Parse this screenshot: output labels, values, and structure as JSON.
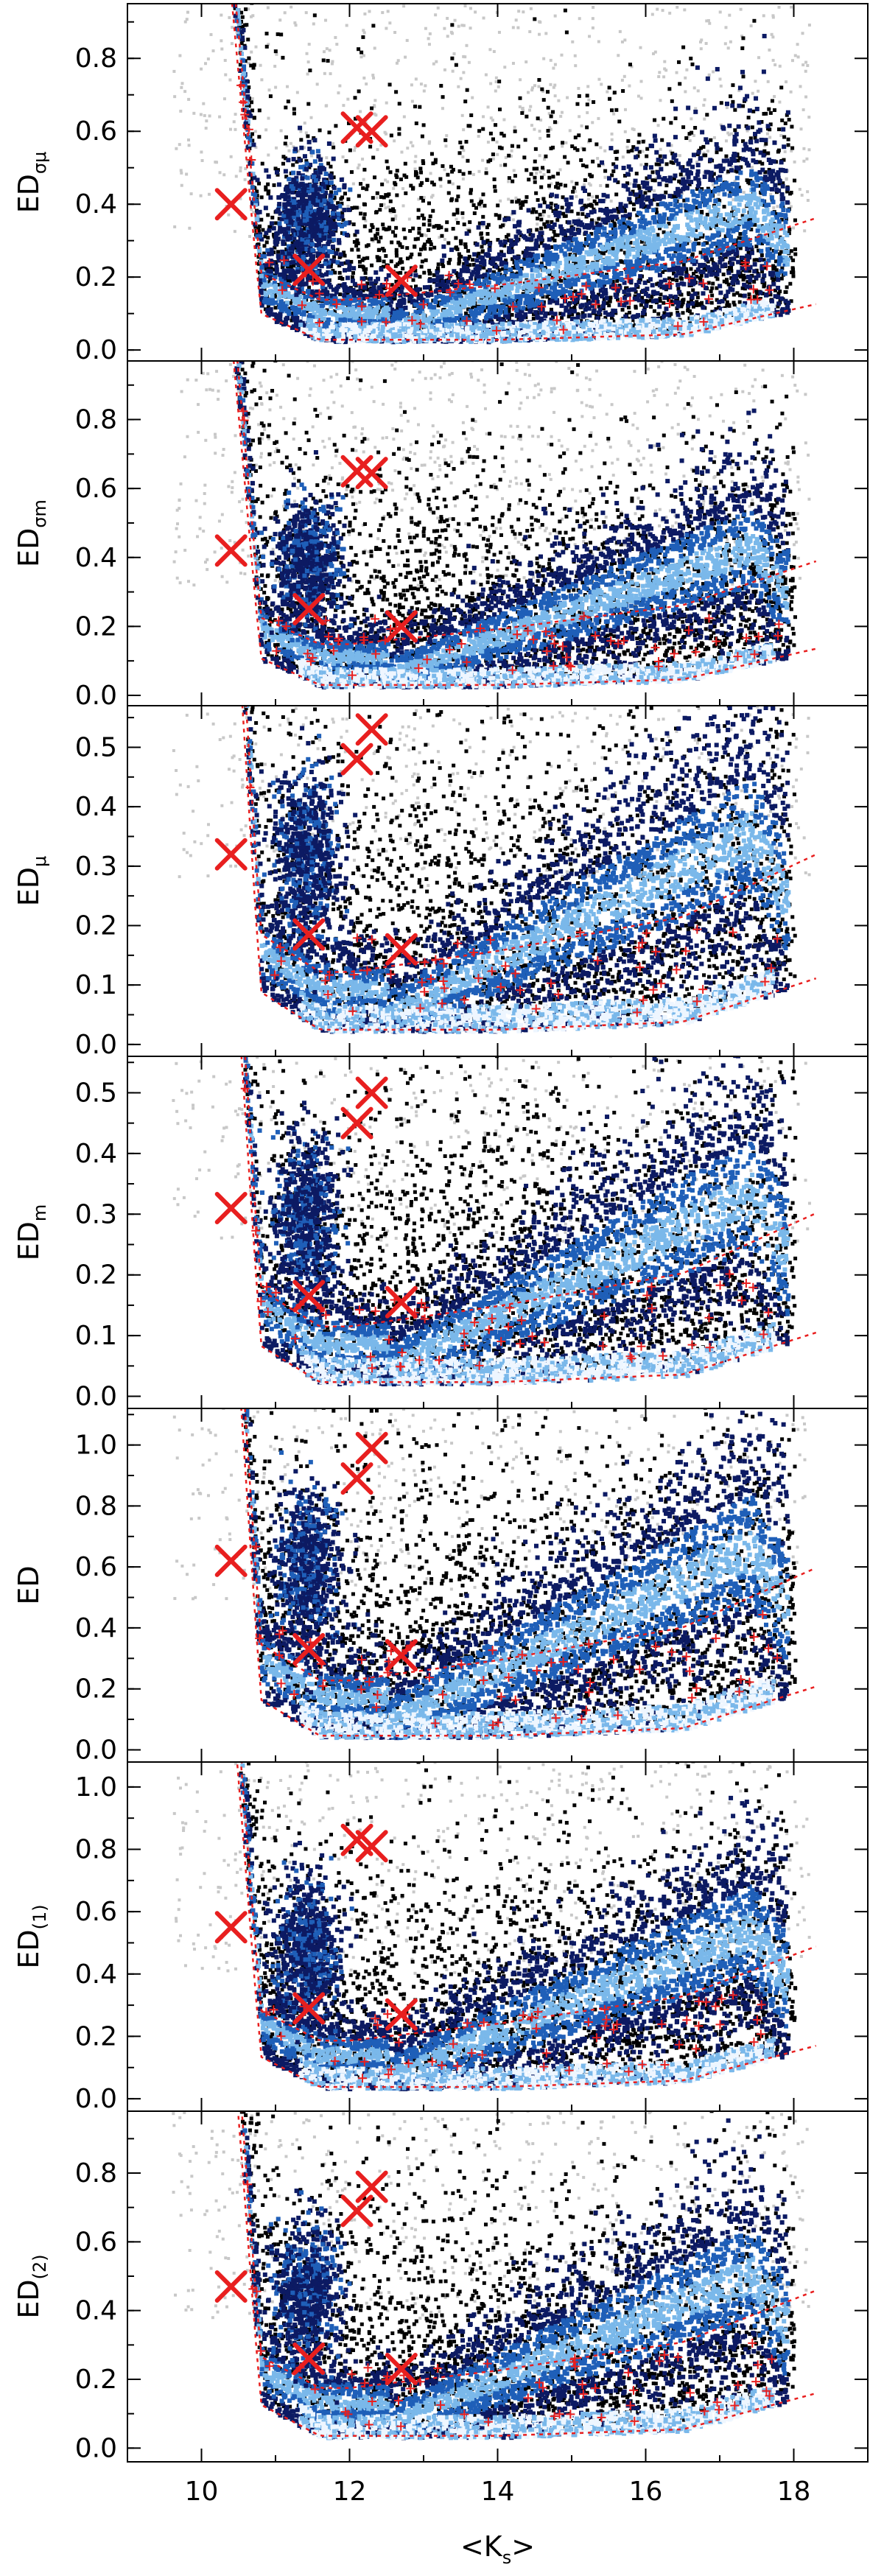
{
  "chart_data": {
    "type": "scatter",
    "shared_x_axis": {
      "label_main": "<K",
      "label_sub": "s",
      "label_end": ">",
      "range": [
        9.0,
        19.0
      ],
      "ticks": [
        10,
        12,
        14,
        16,
        18
      ],
      "tick_labels": [
        "10",
        "12",
        "14",
        "16",
        "18"
      ]
    },
    "colors": {
      "density_dark": "#0c1a63",
      "density_mid": "#1f5fb8",
      "density_light": "#7ab8ea",
      "density_peak": "#eef6ff",
      "outlier": "#000000",
      "faint": "#c8c8c8",
      "marker": "#e81f1f"
    },
    "panels": [
      {
        "ylabel_main": "ED",
        "ylabel_sub": "σμ",
        "ylim": [
          -0.03,
          0.95
        ],
        "yticks": [
          0.0,
          0.2,
          0.4,
          0.6,
          0.8
        ],
        "ytick_labels": [
          "0.0",
          "0.2",
          "0.4",
          "0.6",
          "0.8"
        ],
        "markers": [
          {
            "x": 10.4,
            "y": 0.4
          },
          {
            "x": 11.45,
            "y": 0.22
          },
          {
            "x": 12.1,
            "y": 0.61
          },
          {
            "x": 12.3,
            "y": 0.6
          },
          {
            "x": 12.7,
            "y": 0.19
          }
        ]
      },
      {
        "ylabel_main": "ED",
        "ylabel_sub": "σm",
        "ylim": [
          -0.03,
          0.97
        ],
        "yticks": [
          0.0,
          0.2,
          0.4,
          0.6,
          0.8
        ],
        "ytick_labels": [
          "0.0",
          "0.2",
          "0.4",
          "0.6",
          "0.8"
        ],
        "markers": [
          {
            "x": 10.4,
            "y": 0.42
          },
          {
            "x": 11.45,
            "y": 0.25
          },
          {
            "x": 12.1,
            "y": 0.65
          },
          {
            "x": 12.3,
            "y": 0.645
          },
          {
            "x": 12.7,
            "y": 0.2
          }
        ]
      },
      {
        "ylabel_main": "ED",
        "ylabel_sub": "μ",
        "ylim": [
          -0.02,
          0.57
        ],
        "yticks": [
          0.0,
          0.1,
          0.2,
          0.3,
          0.4,
          0.5
        ],
        "ytick_labels": [
          "0.0",
          "0.1",
          "0.2",
          "0.3",
          "0.4",
          "0.5"
        ],
        "markers": [
          {
            "x": 10.4,
            "y": 0.32
          },
          {
            "x": 11.45,
            "y": 0.185
          },
          {
            "x": 12.1,
            "y": 0.48
          },
          {
            "x": 12.3,
            "y": 0.53
          },
          {
            "x": 12.7,
            "y": 0.16
          }
        ]
      },
      {
        "ylabel_main": "ED",
        "ylabel_sub": "m",
        "ylim": [
          -0.02,
          0.56
        ],
        "yticks": [
          0.0,
          0.1,
          0.2,
          0.3,
          0.4,
          0.5
        ],
        "ytick_labels": [
          "0.0",
          "0.1",
          "0.2",
          "0.3",
          "0.4",
          "0.5"
        ],
        "markers": [
          {
            "x": 10.4,
            "y": 0.31
          },
          {
            "x": 11.45,
            "y": 0.165
          },
          {
            "x": 12.1,
            "y": 0.45
          },
          {
            "x": 12.3,
            "y": 0.5
          },
          {
            "x": 12.7,
            "y": 0.155
          }
        ]
      },
      {
        "ylabel_main": "ED",
        "ylabel_sub": "",
        "ylim": [
          -0.04,
          1.12
        ],
        "yticks": [
          0.0,
          0.2,
          0.4,
          0.6,
          0.8,
          1.0
        ],
        "ytick_labels": [
          "0.0",
          "0.2",
          "0.4",
          "0.6",
          "0.8",
          "1.0"
        ],
        "markers": [
          {
            "x": 10.4,
            "y": 0.62
          },
          {
            "x": 11.45,
            "y": 0.33
          },
          {
            "x": 12.1,
            "y": 0.89
          },
          {
            "x": 12.3,
            "y": 0.99
          },
          {
            "x": 12.7,
            "y": 0.31
          }
        ]
      },
      {
        "ylabel_main": "ED",
        "ylabel_sub": "(1)",
        "ylim": [
          -0.04,
          1.08
        ],
        "yticks": [
          0.0,
          0.2,
          0.4,
          0.6,
          0.8,
          1.0
        ],
        "ytick_labels": [
          "0.0",
          "0.2",
          "0.4",
          "0.6",
          "0.8",
          "1.0"
        ],
        "markers": [
          {
            "x": 10.4,
            "y": 0.55
          },
          {
            "x": 11.45,
            "y": 0.29
          },
          {
            "x": 12.1,
            "y": 0.83
          },
          {
            "x": 12.3,
            "y": 0.81
          },
          {
            "x": 12.7,
            "y": 0.27
          }
        ]
      },
      {
        "ylabel_main": "ED",
        "ylabel_sub": "(2)",
        "ylim": [
          -0.04,
          0.98
        ],
        "yticks": [
          0.0,
          0.2,
          0.4,
          0.6,
          0.8
        ],
        "ytick_labels": [
          "0.0",
          "0.2",
          "0.4",
          "0.6",
          "0.8"
        ],
        "markers": [
          {
            "x": 10.4,
            "y": 0.47
          },
          {
            "x": 11.45,
            "y": 0.26
          },
          {
            "x": 12.1,
            "y": 0.69
          },
          {
            "x": 12.3,
            "y": 0.76
          },
          {
            "x": 12.7,
            "y": 0.23
          }
        ]
      }
    ]
  }
}
